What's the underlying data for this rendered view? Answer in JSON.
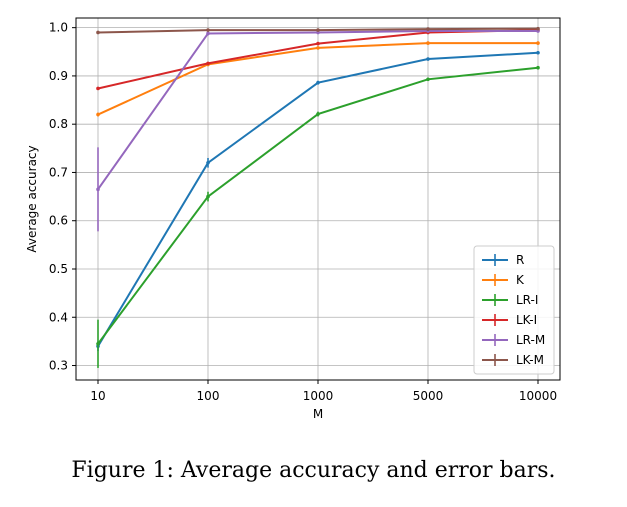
{
  "caption": "Figure 1: Average accuracy and error bars.",
  "chart_data": {
    "type": "line",
    "xlabel": "M",
    "ylabel": "Average accuracy",
    "x": [
      "10",
      "100",
      "1000",
      "5000",
      "10000"
    ],
    "ylim": [
      0.27,
      1.02
    ],
    "yticks": [
      0.3,
      0.4,
      0.5,
      0.6,
      0.7,
      0.8,
      0.9,
      1.0
    ],
    "grid": true,
    "legend_position": "lower-right",
    "series": [
      {
        "name": "R",
        "color": "#1f77b4",
        "values": [
          0.34,
          0.72,
          0.886,
          0.935,
          0.948
        ],
        "errors": [
          0.01,
          0.01,
          0.004,
          0.003,
          0.003
        ]
      },
      {
        "name": "K",
        "color": "#ff7f0e",
        "values": [
          0.82,
          0.924,
          0.958,
          0.968,
          0.968
        ],
        "errors": [
          0.004,
          0.004,
          0.003,
          0.002,
          0.002
        ]
      },
      {
        "name": "LR-I",
        "color": "#2ca02c",
        "values": [
          0.345,
          0.65,
          0.821,
          0.893,
          0.917
        ],
        "errors": [
          0.05,
          0.01,
          0.005,
          0.003,
          0.003
        ]
      },
      {
        "name": "LK-I",
        "color": "#d62728",
        "values": [
          0.874,
          0.926,
          0.967,
          0.99,
          0.995
        ],
        "errors": [
          0.003,
          0.003,
          0.002,
          0.002,
          0.002
        ]
      },
      {
        "name": "LR-M",
        "color": "#9467bd",
        "values": [
          0.665,
          0.988,
          0.99,
          0.993,
          0.993
        ],
        "errors": [
          0.087,
          0.004,
          0.002,
          0.002,
          0.002
        ]
      },
      {
        "name": "LK-M",
        "color": "#8c564b",
        "values": [
          0.99,
          0.995,
          0.995,
          0.997,
          0.998
        ],
        "errors": [
          0.002,
          0.002,
          0.001,
          0.001,
          0.001
        ]
      }
    ]
  }
}
